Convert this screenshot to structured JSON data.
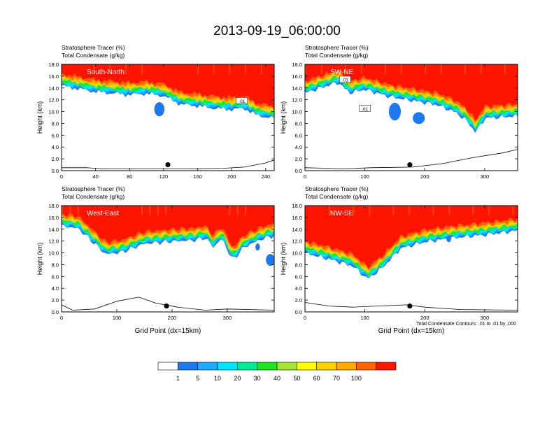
{
  "figure": {
    "title": "2013-09-19_06:00:00",
    "footnote": "Total Condensate Contours: .01 to .01 by .000"
  },
  "colors": {
    "levels": [
      "#ffffff",
      "#1e78f0",
      "#1eaaff",
      "#00e6ff",
      "#00eb9a",
      "#1ee61e",
      "#a0e632",
      "#ffff00",
      "#ffd200",
      "#ffaa00",
      "#ff6400",
      "#ff1400"
    ]
  },
  "chart_data": [
    {
      "type": "heatmap",
      "id": "sn",
      "label": "South-North",
      "title_line1": "Stratosphere Tracer   (%)",
      "title_line2": "Total Condensate   (g/kg)",
      "ylabel": "Height (km)",
      "xlabel": "",
      "xlim": [
        0,
        250
      ],
      "ylim": [
        0,
        18
      ],
      "xticks": [
        "0",
        "40",
        "80",
        "120",
        "160",
        "200",
        "240"
      ],
      "xtick_values": [
        0,
        40,
        80,
        120,
        160,
        200,
        240
      ],
      "yticks": [
        "0.0",
        "2.0",
        "4.0",
        "6.0",
        "8.0",
        "10.0",
        "12.0",
        "14.0",
        "16.0",
        "18.0"
      ],
      "ytick_values": [
        0,
        2,
        4,
        6,
        8,
        10,
        12,
        14,
        16,
        18
      ],
      "tropopause_km": [
        [
          0,
          15.4
        ],
        [
          40,
          14.4
        ],
        [
          80,
          13.9
        ],
        [
          100,
          14.1
        ],
        [
          120,
          13.7
        ],
        [
          140,
          12.3
        ],
        [
          160,
          12.0
        ],
        [
          180,
          11.6
        ],
        [
          200,
          11.4
        ],
        [
          215,
          11.6
        ],
        [
          230,
          10.4
        ],
        [
          250,
          9.9
        ]
      ],
      "blobs": [
        {
          "x": 115,
          "y": 10.4,
          "rx": 6,
          "ry": 1.2
        }
      ],
      "contour_labels": [
        {
          "x": 212,
          "y": 11.8,
          "text": ".01"
        }
      ],
      "marker": {
        "x": 125,
        "y": 1.0
      },
      "terrain_km": [
        [
          0,
          0.5
        ],
        [
          30,
          0.5
        ],
        [
          50,
          0.3
        ],
        [
          100,
          0.3
        ],
        [
          150,
          0.3
        ],
        [
          190,
          0.4
        ],
        [
          215,
          0.6
        ],
        [
          240,
          1.3
        ],
        [
          250,
          1.8
        ]
      ]
    },
    {
      "type": "heatmap",
      "id": "swne",
      "label": "SW-NE",
      "title_line1": "Stratosphere Tracer   (%)",
      "title_line2": "Total Condensate   (g/kg)",
      "ylabel": "Height (km)",
      "xlabel": "",
      "xlim": [
        0,
        355
      ],
      "ylim": [
        0,
        18
      ],
      "xticks": [
        "0",
        "100",
        "200",
        "300"
      ],
      "xtick_values": [
        0,
        100,
        200,
        300
      ],
      "yticks": [
        "0.0",
        "2.0",
        "4.0",
        "6.0",
        "8.0",
        "10.0",
        "12.0",
        "14.0",
        "16.0",
        "18.0"
      ],
      "ytick_values": [
        0,
        2,
        4,
        6,
        8,
        10,
        12,
        14,
        16,
        18
      ],
      "tropopause_km": [
        [
          0,
          14.2
        ],
        [
          30,
          15.2
        ],
        [
          55,
          16.0
        ],
        [
          75,
          14.2
        ],
        [
          100,
          14.8
        ],
        [
          140,
          13.6
        ],
        [
          180,
          12.9
        ],
        [
          220,
          12.2
        ],
        [
          250,
          11.0
        ],
        [
          270,
          9.5
        ],
        [
          285,
          7.5
        ],
        [
          300,
          9.9
        ],
        [
          355,
          10.3
        ]
      ],
      "blobs": [
        {
          "x": 150,
          "y": 10.0,
          "rx": 10,
          "ry": 1.5
        },
        {
          "x": 190,
          "y": 8.9,
          "rx": 10,
          "ry": 1.0
        }
      ],
      "contour_labels": [
        {
          "x": 67,
          "y": 15.4,
          "text": ".01"
        },
        {
          "x": 100,
          "y": 10.5,
          "text": ".01"
        }
      ],
      "marker": {
        "x": 175,
        "y": 1.0
      },
      "terrain_km": [
        [
          0,
          0.5
        ],
        [
          40,
          0.4
        ],
        [
          60,
          0.3
        ],
        [
          110,
          0.5
        ],
        [
          180,
          0.6
        ],
        [
          230,
          1.2
        ],
        [
          280,
          2.2
        ],
        [
          330,
          3.0
        ],
        [
          355,
          3.6
        ]
      ]
    },
    {
      "type": "heatmap",
      "id": "we",
      "label": "West-East",
      "title_line1": "Stratosphere Tracer   (%)",
      "title_line2": "Total Condensate   (g/kg)",
      "ylabel": "Height (km)",
      "xlabel": "Grid Point (dx=15km)",
      "xlim": [
        0,
        385
      ],
      "ylim": [
        0,
        18
      ],
      "xticks": [
        "0",
        "100",
        "200",
        "300"
      ],
      "xtick_values": [
        0,
        100,
        200,
        300
      ],
      "yticks": [
        "0.0",
        "2.0",
        "4.0",
        "6.0",
        "8.0",
        "10.0",
        "12.0",
        "14.0",
        "16.0",
        "18.0"
      ],
      "ytick_values": [
        0,
        2,
        4,
        6,
        8,
        10,
        12,
        14,
        16,
        18
      ],
      "tropopause_km": [
        [
          0,
          15.6
        ],
        [
          30,
          15.2
        ],
        [
          60,
          12.6
        ],
        [
          80,
          10.8
        ],
        [
          110,
          11.2
        ],
        [
          150,
          12.6
        ],
        [
          200,
          13.0
        ],
        [
          240,
          13.2
        ],
        [
          260,
          13.6
        ],
        [
          275,
          12.0
        ],
        [
          290,
          13.5
        ],
        [
          310,
          9.8
        ],
        [
          330,
          12.0
        ],
        [
          360,
          13.3
        ],
        [
          385,
          14.0
        ]
      ],
      "blobs": [
        {
          "x": 355,
          "y": 11.0,
          "rx": 4,
          "ry": 0.6
        },
        {
          "x": 378,
          "y": 8.8,
          "rx": 8,
          "ry": 1.0
        }
      ],
      "contour_labels": [],
      "marker": {
        "x": 190,
        "y": 1.0
      },
      "terrain_km": [
        [
          0,
          1.2
        ],
        [
          20,
          0.3
        ],
        [
          60,
          0.5
        ],
        [
          100,
          1.8
        ],
        [
          140,
          2.5
        ],
        [
          170,
          1.5
        ],
        [
          210,
          0.8
        ],
        [
          260,
          0.3
        ],
        [
          300,
          0.5
        ],
        [
          385,
          0.3
        ]
      ]
    },
    {
      "type": "heatmap",
      "id": "nwse",
      "label": "NW-SE",
      "title_line1": "Stratosphere Tracer   (%)",
      "title_line2": "Total Condensate   (g/kg)",
      "ylabel": "Height (km)",
      "xlabel": "Grid Point (dx=15km)",
      "xlim": [
        0,
        355
      ],
      "ylim": [
        0,
        18
      ],
      "xticks": [
        "0",
        "100",
        "200",
        "300"
      ],
      "xtick_values": [
        0,
        100,
        200,
        300
      ],
      "yticks": [
        "0.0",
        "2.0",
        "4.0",
        "6.0",
        "8.0",
        "10.0",
        "12.0",
        "14.0",
        "16.0",
        "18.0"
      ],
      "ytick_values": [
        0,
        2,
        4,
        6,
        8,
        10,
        12,
        14,
        16,
        18
      ],
      "tropopause_km": [
        [
          0,
          11.0
        ],
        [
          40,
          10.0
        ],
        [
          80,
          8.8
        ],
        [
          105,
          6.6
        ],
        [
          130,
          8.6
        ],
        [
          160,
          11.8
        ],
        [
          200,
          12.9
        ],
        [
          250,
          13.6
        ],
        [
          300,
          14.1
        ],
        [
          355,
          14.8
        ]
      ],
      "blobs": [
        {
          "x": 240,
          "y": 12.4,
          "rx": 4,
          "ry": 0.6
        }
      ],
      "contour_labels": [],
      "marker": {
        "x": 175,
        "y": 1.0
      },
      "terrain_km": [
        [
          0,
          1.6
        ],
        [
          40,
          1.0
        ],
        [
          80,
          0.8
        ],
        [
          120,
          1.0
        ],
        [
          170,
          1.2
        ],
        [
          200,
          0.8
        ],
        [
          260,
          0.4
        ],
        [
          355,
          0.3
        ]
      ]
    }
  ],
  "colorbar": {
    "labels": [
      "1",
      "5",
      "10",
      "20",
      "30",
      "40",
      "50",
      "60",
      "70",
      "100"
    ]
  }
}
